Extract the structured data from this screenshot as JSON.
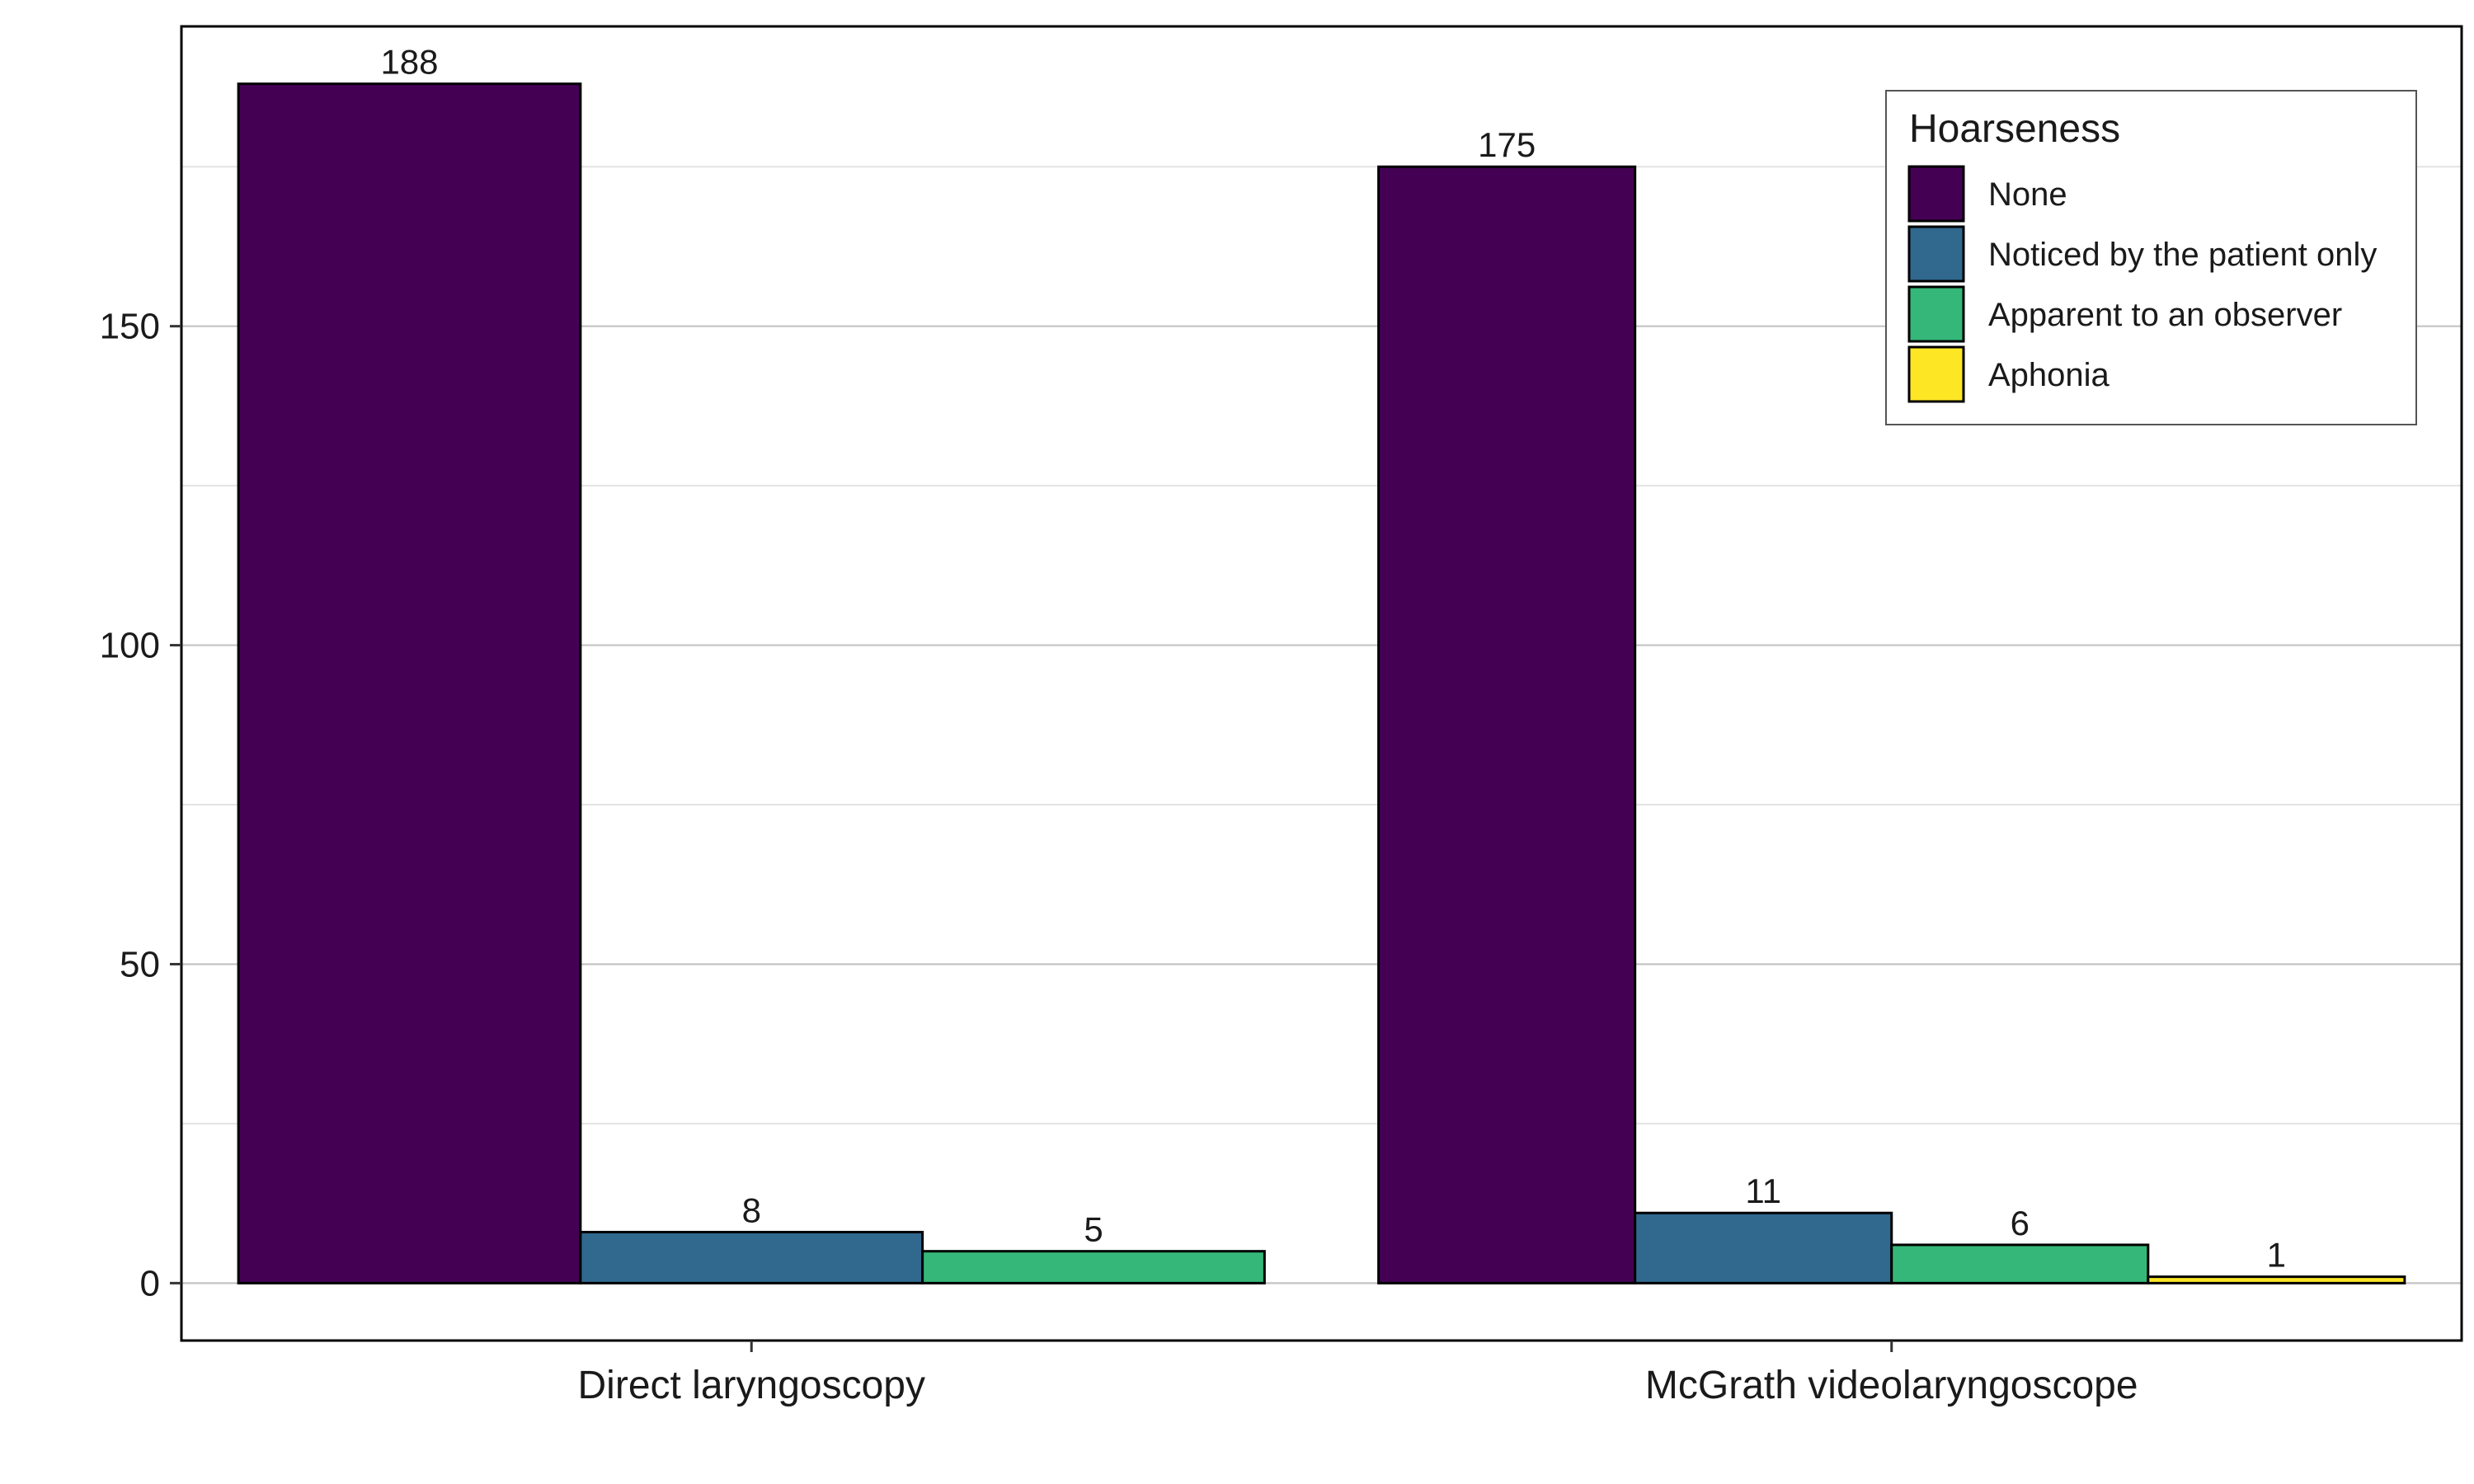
{
  "chart_data": {
    "type": "bar",
    "categories": [
      "Direct laryngoscopy",
      "McGrath videolaryngoscope"
    ],
    "series": [
      {
        "name": "None",
        "color": "#440154",
        "values": [
          188,
          175
        ]
      },
      {
        "name": "Noticed by the patient only",
        "color": "#31688E",
        "values": [
          8,
          11
        ]
      },
      {
        "name": "Apparent to an observer",
        "color": "#35B779",
        "values": [
          5,
          6
        ]
      },
      {
        "name": "Aphonia",
        "color": "#FDE725",
        "values": [
          null,
          1
        ]
      }
    ],
    "legend": {
      "title": "Hoarseness",
      "placement": "top-right"
    },
    "title": "",
    "xlabel": "",
    "ylabel": "",
    "ylim": [
      -9,
      197
    ],
    "yticks": [
      0,
      50,
      100,
      150
    ],
    "grid": true
  }
}
